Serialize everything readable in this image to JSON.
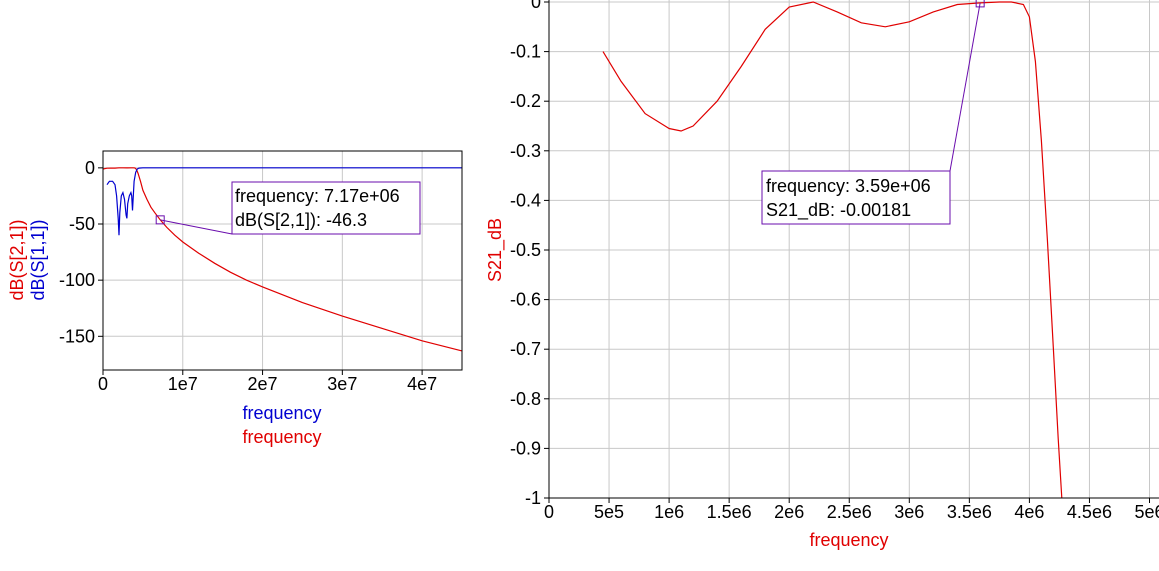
{
  "chart_data": [
    {
      "type": "line",
      "xlabels": [
        "frequency",
        "frequency"
      ],
      "ylabels": [
        "dB(S[2,1])",
        "dB(S[1,1])"
      ],
      "xlim": [
        0,
        45000000
      ],
      "ylim": [
        -180,
        15
      ],
      "x_ticks": [
        0,
        10000000,
        20000000,
        30000000,
        40000000
      ],
      "x_tick_labels": [
        "0",
        "1e7",
        "2e7",
        "3e7",
        "4e7"
      ],
      "y_ticks": [
        0,
        -50,
        -100,
        -150
      ],
      "y_tick_labels": [
        "0",
        "-50",
        "-100",
        "-150"
      ],
      "grid": true,
      "series": [
        {
          "name": "dB(S[2,1])",
          "color": "#e00000",
          "x": [
            0,
            500000,
            1000000,
            1500000,
            2000000,
            2500000,
            3000000,
            3500000,
            3800000,
            4000000,
            4200000,
            4400000,
            4700000,
            5000000,
            5500000,
            6000000,
            6500000,
            7170000,
            8000000,
            9000000,
            10000000,
            12000000,
            14000000,
            16000000,
            18000000,
            20000000,
            25000000,
            30000000,
            35000000,
            40000000,
            45000000
          ],
          "y": [
            -1,
            -0.3,
            -0.2,
            -0.2,
            0,
            0,
            -0.05,
            0,
            0,
            -0.02,
            -1.5,
            -5,
            -12,
            -20,
            -28,
            -35,
            -40,
            -46.3,
            -53,
            -60,
            -66,
            -76,
            -85,
            -93,
            -100,
            -106,
            -120,
            -132,
            -143,
            -154,
            -163
          ]
        },
        {
          "name": "dB(S[1,1])",
          "color": "#0000d0",
          "x": [
            500000,
            800000,
            1200000,
            1500000,
            1700000,
            1900000,
            2000000,
            2100000,
            2300000,
            2500000,
            2700000,
            2900000,
            3000000,
            3100000,
            3300000,
            3500000,
            3600000,
            3700000,
            3900000,
            4100000,
            4300000,
            4500000,
            5000000,
            10000000,
            20000000,
            30000000,
            45000000
          ],
          "y": [
            -15,
            -12,
            -12,
            -15,
            -25,
            -45,
            -60,
            -40,
            -25,
            -22,
            -28,
            -42,
            -45,
            -32,
            -25,
            -22,
            -25,
            -38,
            -12,
            -4,
            -1,
            -0.2,
            0,
            0,
            0,
            0,
            0
          ]
        }
      ],
      "marker": {
        "x": 7170000,
        "y": -46.3,
        "text": [
          "frequency: 7.17e+06",
          "dB(S[2,1]): -46.3"
        ]
      }
    },
    {
      "type": "line",
      "xlabel": "frequency",
      "ylabel": "S21_dB",
      "xlim": [
        0,
        5000000
      ],
      "ylim": [
        -1,
        0
      ],
      "x_ticks": [
        0,
        500000,
        1000000,
        1500000,
        2000000,
        2500000,
        3000000,
        3500000,
        4000000,
        4500000,
        5000000
      ],
      "x_tick_labels": [
        "0",
        "5e5",
        "1e6",
        "1.5e6",
        "2e6",
        "2.5e6",
        "3e6",
        "3.5e6",
        "4e6",
        "4.5e6",
        "5e6"
      ],
      "y_ticks": [
        0,
        -0.1,
        -0.2,
        -0.3,
        -0.4,
        -0.5,
        -0.6,
        -0.7,
        -0.8,
        -0.9,
        -1
      ],
      "y_tick_labels": [
        "0",
        "-0.1",
        "-0.2",
        "-0.3",
        "-0.4",
        "-0.5",
        "-0.6",
        "-0.7",
        "-0.8",
        "-0.9",
        "-1"
      ],
      "grid": true,
      "series": [
        {
          "name": "S21_dB",
          "color": "#e00000",
          "x": [
            450000,
            600000,
            800000,
            1000000,
            1100000,
            1200000,
            1400000,
            1600000,
            1800000,
            2000000,
            2200000,
            2400000,
            2600000,
            2800000,
            3000000,
            3200000,
            3400000,
            3590000,
            3750000,
            3850000,
            3950000,
            4000000,
            4050000,
            4100000,
            4150000,
            4200000,
            4240000,
            4270000
          ],
          "y": [
            -0.1,
            -0.16,
            -0.225,
            -0.255,
            -0.26,
            -0.25,
            -0.2,
            -0.13,
            -0.055,
            -0.01,
            0,
            -0.02,
            -0.042,
            -0.05,
            -0.04,
            -0.02,
            -0.005,
            -0.00181,
            0,
            0,
            -0.005,
            -0.03,
            -0.12,
            -0.28,
            -0.48,
            -0.7,
            -0.88,
            -1
          ]
        }
      ],
      "marker": {
        "x": 3590000,
        "y": -0.00181,
        "text": [
          "frequency: 3.59e+06",
          "S21_dB: -0.00181"
        ]
      }
    }
  ]
}
